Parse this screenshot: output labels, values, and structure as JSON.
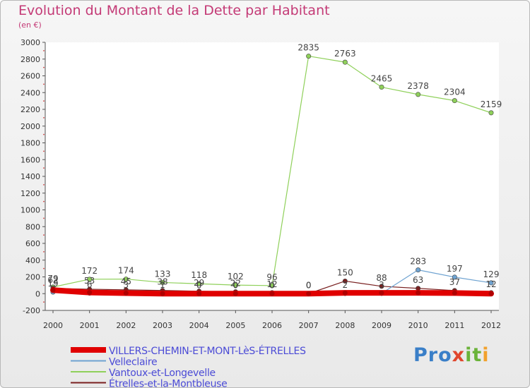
{
  "title": "Evolution du Montant de la Dette par Habitant",
  "subtitle": "(en €)",
  "logo": {
    "p1": "Pro",
    "x": "x",
    "t": "it",
    "i": "i"
  },
  "chart_data": {
    "type": "line",
    "x": [
      "2000",
      "2001",
      "2002",
      "2003",
      "2004",
      "2005",
      "2006",
      "2007",
      "2008",
      "2009",
      "2010",
      "2011",
      "2012"
    ],
    "ylim": [
      -200,
      3000
    ],
    "yticks": [
      -200,
      0,
      200,
      400,
      600,
      800,
      1000,
      1200,
      1400,
      1600,
      1800,
      2000,
      2200,
      2400,
      2600,
      2800,
      3000
    ],
    "grid": false,
    "legend_position": "bottom-left",
    "series": [
      {
        "name": "VILLERS-CHEMIN-ET-MONT-LèS-ÉTRELLES",
        "color": "#e00000",
        "values": [
          42,
          14,
          6,
          0,
          0,
          0,
          0,
          0,
          9,
          9,
          9,
          7,
          0
        ],
        "labeled": false,
        "width": 8
      },
      {
        "name": "Velleclaire",
        "color": "#6fa3d1",
        "values": [
          19,
          6,
          3,
          1,
          0,
          0,
          0,
          0,
          2,
          3,
          283,
          197,
          129
        ],
        "labeled": true,
        "width": 1.2
      },
      {
        "name": "Vantoux-et-Longevelle",
        "color": "#8fd05a",
        "values": [
          79,
          172,
          174,
          133,
          118,
          102,
          96,
          2835,
          2763,
          2465,
          2378,
          2304,
          2159
        ],
        "labeled": true,
        "width": 1.2
      },
      {
        "name": "Étrelles-et-la-Montbleuse",
        "color": "#7a2020",
        "values": [
          62,
          53,
          45,
          38,
          29,
          22,
          12,
          0,
          150,
          88,
          63,
          37,
          12
        ],
        "labeled": true,
        "width": 1.2
      }
    ]
  }
}
